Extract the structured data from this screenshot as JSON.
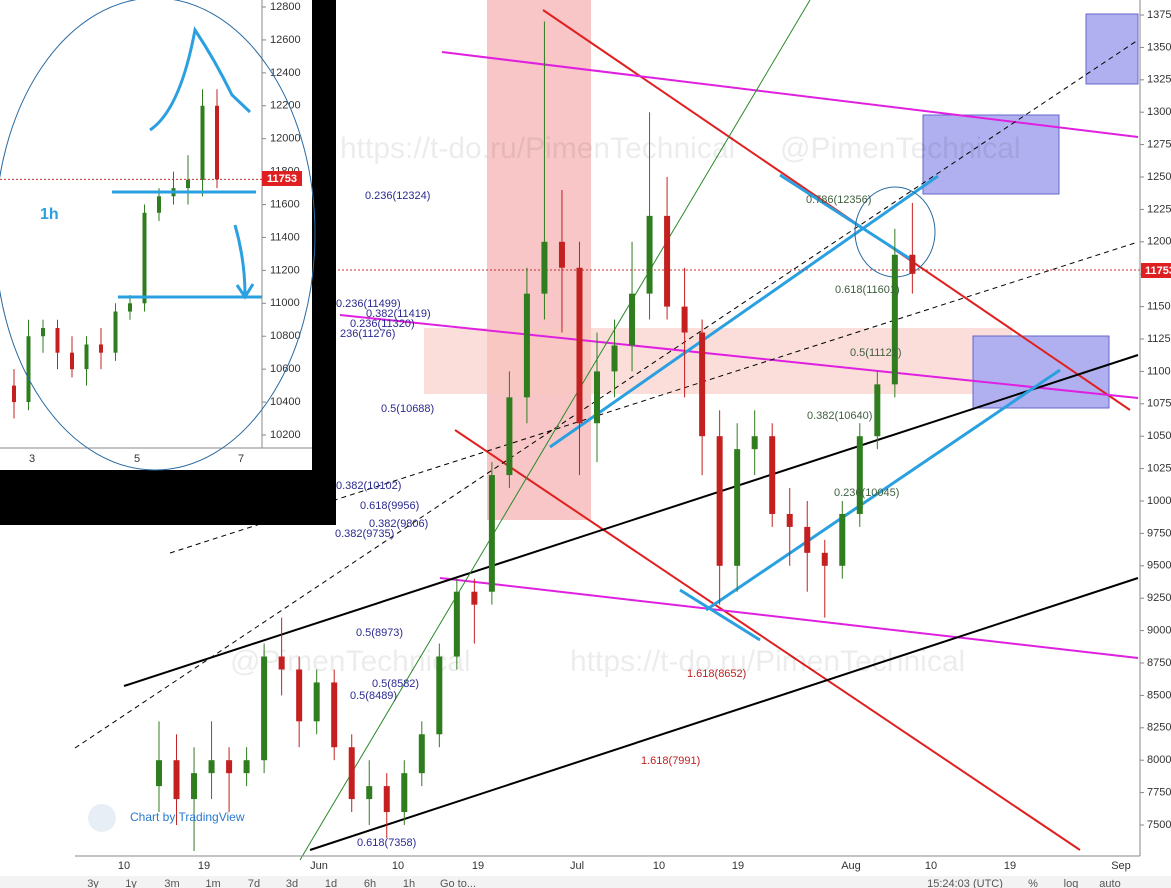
{
  "chart": {
    "watermarks": [
      "https://t-do.ru/PimenTechnical",
      "@PimenTechnical",
      "@PimenTechnical",
      "https://t-do.ru/PimenTechnical"
    ],
    "price_ticks": [
      7500,
      7750,
      8000,
      8250,
      8500,
      8750,
      9000,
      9250,
      9500,
      9750,
      10000,
      10250,
      10500,
      10750,
      11000,
      11250,
      11500,
      11750,
      12000,
      12250,
      12500,
      12750,
      13000,
      13250,
      13500,
      13750
    ],
    "date_labels": [
      "10",
      "19",
      "Jun",
      "10",
      "19",
      "Jul",
      "10",
      "19",
      "Aug",
      "10",
      "19",
      "Sep"
    ],
    "last_price": "11753",
    "candles": [
      [
        7800,
        8300,
        7600,
        8000
      ],
      [
        8000,
        8200,
        7500,
        7700
      ],
      [
        7700,
        8100,
        7300,
        7900
      ],
      [
        7900,
        8300,
        7700,
        8000
      ],
      [
        8000,
        8100,
        7600,
        7900
      ],
      [
        7900,
        8100,
        7800,
        8000
      ],
      [
        8000,
        8900,
        7900,
        8800
      ],
      [
        8800,
        9100,
        8500,
        8700
      ],
      [
        8700,
        8800,
        8100,
        8300
      ],
      [
        8300,
        8700,
        8200,
        8600
      ],
      [
        8600,
        8700,
        8000,
        8100
      ],
      [
        8100,
        8200,
        7600,
        7700
      ],
      [
        7700,
        8000,
        7500,
        7800
      ],
      [
        7800,
        7900,
        7400,
        7600
      ],
      [
        7600,
        8000,
        7500,
        7900
      ],
      [
        7900,
        8300,
        7800,
        8200
      ],
      [
        8200,
        8900,
        8100,
        8800
      ],
      [
        8800,
        9400,
        8700,
        9300
      ],
      [
        9300,
        9400,
        8900,
        9200
      ],
      [
        9300,
        10300,
        9200,
        10200
      ],
      [
        10200,
        11000,
        10100,
        10800
      ],
      [
        10800,
        11800,
        10600,
        11600
      ],
      [
        11600,
        13700,
        11400,
        12000
      ],
      [
        12000,
        12400,
        11300,
        11800
      ],
      [
        11800,
        12000,
        10200,
        10600
      ],
      [
        10600,
        11300,
        10300,
        11000
      ],
      [
        11000,
        11400,
        10800,
        11200
      ],
      [
        11200,
        12000,
        11000,
        11600
      ],
      [
        11600,
        13000,
        11400,
        12200
      ],
      [
        12200,
        12500,
        11400,
        11500
      ],
      [
        11500,
        11800,
        10800,
        11300
      ],
      [
        11300,
        11400,
        10200,
        10500
      ],
      [
        10500,
        10700,
        9200,
        9500
      ],
      [
        9500,
        10600,
        9300,
        10400
      ],
      [
        10400,
        10700,
        10200,
        10500
      ],
      [
        10500,
        10600,
        9800,
        9900
      ],
      [
        9900,
        10100,
        9500,
        9800
      ],
      [
        9800,
        10000,
        9300,
        9600
      ],
      [
        9600,
        9700,
        9100,
        9500
      ],
      [
        9500,
        10000,
        9400,
        9900
      ],
      [
        9900,
        10600,
        9800,
        10500
      ],
      [
        10500,
        11000,
        10400,
        10900
      ],
      [
        10900,
        12100,
        10800,
        11900
      ],
      [
        11900,
        12300,
        11600,
        11753
      ]
    ],
    "fib_labels": [
      "0.236(12324)",
      "0.236(11499)",
      "0.382(11419)",
      "0.236(11320)",
      "236(11276)",
      "0.5(10688)",
      "0.382(10102)",
      "0.618(9956)",
      "0.382(9806)",
      "0.382(9735)",
      "0.5(8973)",
      "0.5(8582)",
      "0.5(8489)",
      "0.618(7358)",
      "0.786(12356)",
      "0.618(11601)",
      "0.5(11121)",
      "0.382(10640)",
      "0.236(10045)",
      "1.618(8652)",
      "1.618(7991)"
    ],
    "attribution": "Chart by TradingView"
  },
  "inset": {
    "timeframe": "1h",
    "price_ticks": [
      10200,
      10400,
      10600,
      10800,
      11000,
      11200,
      11400,
      11600,
      11800,
      12000,
      12200,
      12400,
      12600,
      12800
    ],
    "date_labels": [
      "3",
      "5",
      "7"
    ],
    "last_price": "11753",
    "candles": [
      [
        10500,
        10600,
        10300,
        10400
      ],
      [
        10400,
        10900,
        10350,
        10800
      ],
      [
        10800,
        10900,
        10700,
        10850
      ],
      [
        10850,
        10900,
        10600,
        10700
      ],
      [
        10700,
        10800,
        10550,
        10600
      ],
      [
        10600,
        10800,
        10500,
        10750
      ],
      [
        10750,
        10850,
        10600,
        10700
      ],
      [
        10700,
        11000,
        10650,
        10950
      ],
      [
        10950,
        11050,
        10900,
        11000
      ],
      [
        11000,
        11600,
        10950,
        11550
      ],
      [
        11550,
        11700,
        11500,
        11650
      ],
      [
        11650,
        11800,
        11600,
        11700
      ],
      [
        11700,
        11900,
        11600,
        11750
      ],
      [
        11750,
        12300,
        11650,
        12200
      ],
      [
        12200,
        12300,
        11700,
        11753
      ]
    ]
  },
  "toolbar": {
    "ranges": [
      "3y",
      "1y",
      "3m",
      "1m",
      "7d",
      "3d",
      "1d",
      "6h",
      "1h",
      "Go to..."
    ],
    "time": "15:24:03 (UTC)",
    "options": [
      "%",
      "log",
      "auto"
    ]
  }
}
